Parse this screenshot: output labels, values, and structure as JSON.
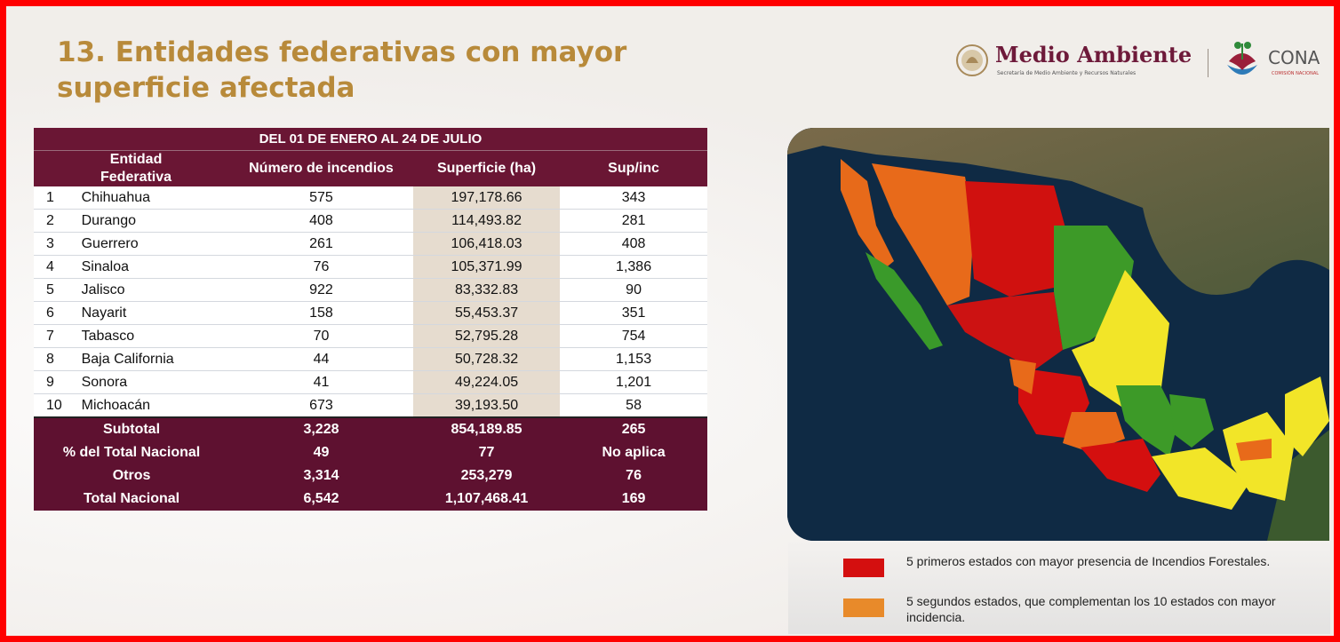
{
  "title": "13. Entidades federativas con mayor superficie afectada",
  "logos": {
    "brand": "Medio Ambiente",
    "brand_subtitle": "Secretaría de Medio Ambiente y Recursos Naturales",
    "cona": "CONA",
    "cona_subtitle": "COMISIÓN NACIONAL"
  },
  "table": {
    "period": "DEL 01 DE ENERO AL 24 DE JULIO",
    "headers": [
      "Entidad Federativa",
      "Número de incendios",
      "Superficie (ha)",
      "Sup/inc"
    ],
    "rows": [
      {
        "rank": "1",
        "entidad": "Chihuahua",
        "incendios": "575",
        "superficie": "197,178.66",
        "supinc": "343"
      },
      {
        "rank": "2",
        "entidad": "Durango",
        "incendios": "408",
        "superficie": "114,493.82",
        "supinc": "281"
      },
      {
        "rank": "3",
        "entidad": "Guerrero",
        "incendios": "261",
        "superficie": "106,418.03",
        "supinc": "408"
      },
      {
        "rank": "4",
        "entidad": "Sinaloa",
        "incendios": "76",
        "superficie": "105,371.99",
        "supinc": "1,386"
      },
      {
        "rank": "5",
        "entidad": "Jalisco",
        "incendios": "922",
        "superficie": "83,332.83",
        "supinc": "90"
      },
      {
        "rank": "6",
        "entidad": "Nayarit",
        "incendios": "158",
        "superficie": "55,453.37",
        "supinc": "351"
      },
      {
        "rank": "7",
        "entidad": "Tabasco",
        "incendios": "70",
        "superficie": "52,795.28",
        "supinc": "754"
      },
      {
        "rank": "8",
        "entidad": "Baja California",
        "incendios": "44",
        "superficie": "50,728.32",
        "supinc": "1,153"
      },
      {
        "rank": "9",
        "entidad": "Sonora",
        "incendios": "41",
        "superficie": "49,224.05",
        "supinc": "1,201"
      },
      {
        "rank": "10",
        "entidad": "Michoacán",
        "incendios": "673",
        "superficie": "39,193.50",
        "supinc": "58"
      }
    ],
    "summary": [
      {
        "label": "Subtotal",
        "incendios": "3,228",
        "superficie": "854,189.85",
        "supinc": "265"
      },
      {
        "label": "% del Total Nacional",
        "incendios": "49",
        "superficie": "77",
        "supinc": "No aplica"
      },
      {
        "label": "Otros",
        "incendios": "3,314",
        "superficie": "253,279",
        "supinc": "76"
      },
      {
        "label": "Total Nacional",
        "incendios": "6,542",
        "superficie": "1,107,468.41",
        "supinc": "169"
      }
    ]
  },
  "legend": [
    {
      "color": "#d40f0f",
      "text": "5 primeros estados con mayor presencia de Incendios Forestales."
    },
    {
      "color": "#e88a2a",
      "text": "5 segundos estados, que complementan los 10 estados con mayor incidencia."
    }
  ],
  "colors": {
    "table_header": "#6a1634",
    "title": "#b88a3a",
    "frame": "#ff0000"
  }
}
